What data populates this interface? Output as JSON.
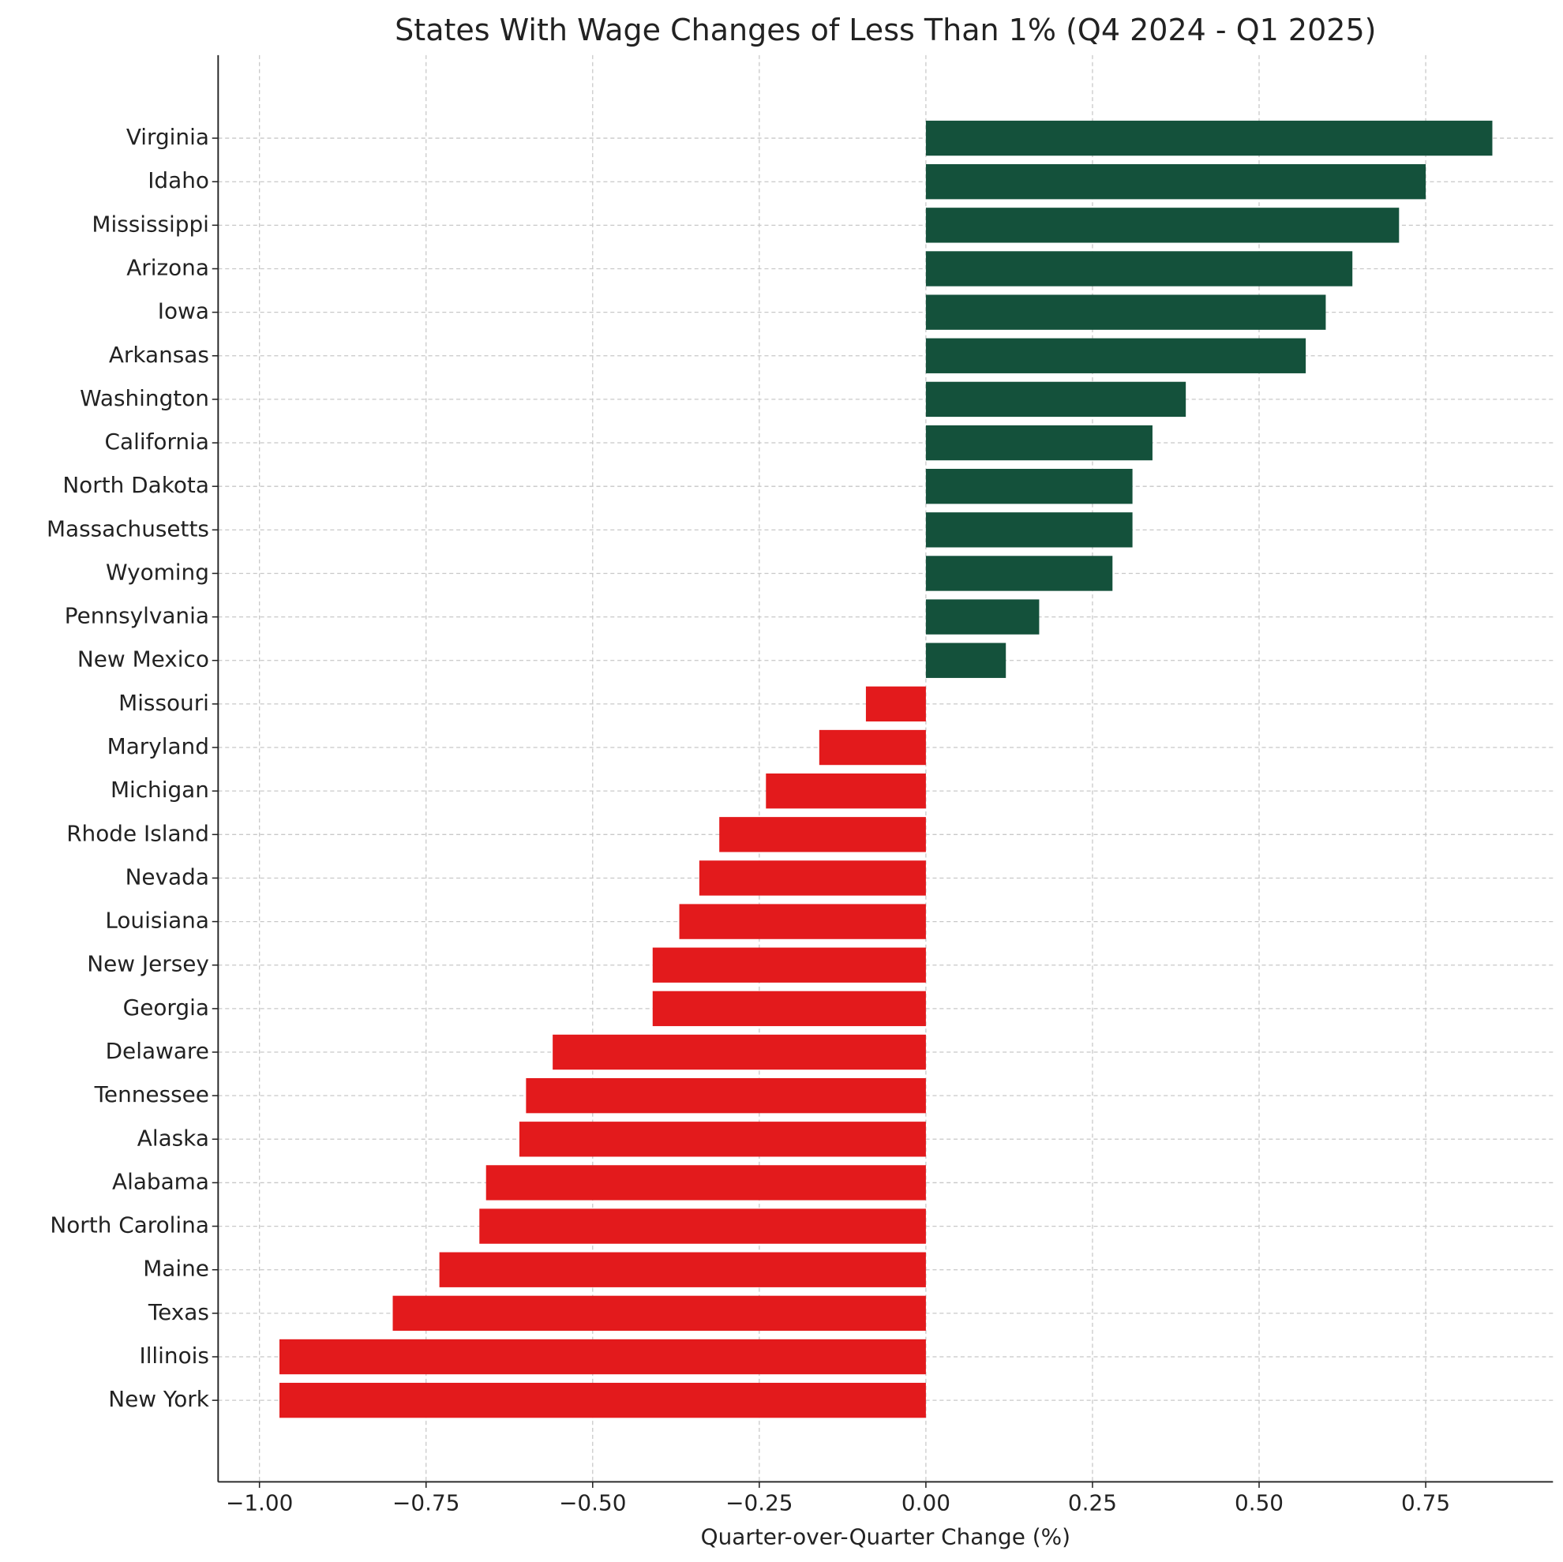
{
  "chart_data": {
    "type": "barh",
    "title": "States With Wage Changes of Less Than 1% (Q4 2024 - Q1 2025)",
    "x_label": "Quarter-over-Quarter Change (%)",
    "categories": [
      "Virginia",
      "Idaho",
      "Mississippi",
      "Arizona",
      "Iowa",
      "Arkansas",
      "Washington",
      "California",
      "North Dakota",
      "Massachusetts",
      "Wyoming",
      "Pennsylvania",
      "New Mexico",
      "Missouri",
      "Maryland",
      "Michigan",
      "Rhode Island",
      "Nevada",
      "Louisiana",
      "New Jersey",
      "Georgia",
      "Delaware",
      "Tennessee",
      "Alaska",
      "Alabama",
      "North Carolina",
      "Maine",
      "Texas",
      "Illinois",
      "New York"
    ],
    "values": [
      0.85,
      0.75,
      0.71,
      0.64,
      0.6,
      0.57,
      0.39,
      0.34,
      0.31,
      0.31,
      0.28,
      0.17,
      0.12,
      -0.09,
      -0.16,
      -0.24,
      -0.31,
      -0.34,
      -0.37,
      -0.41,
      -0.41,
      -0.56,
      -0.6,
      -0.61,
      -0.66,
      -0.67,
      -0.73,
      -0.8,
      -0.97,
      -0.97
    ],
    "positive_color": "#14513b",
    "negative_color": "#e31a1c",
    "xlim": [
      -1.062,
      0.941
    ],
    "xticks": [
      {
        "value": -1.0,
        "label": "−1.00"
      },
      {
        "value": -0.75,
        "label": "−0.75"
      },
      {
        "value": -0.5,
        "label": "−0.50"
      },
      {
        "value": -0.25,
        "label": "−0.25"
      },
      {
        "value": 0,
        "label": "0.00"
      },
      {
        "value": 0.25,
        "label": "0.25"
      },
      {
        "value": 0.5,
        "label": "0.50"
      },
      {
        "value": 0.75,
        "label": "0.75"
      }
    ],
    "grid": true
  }
}
